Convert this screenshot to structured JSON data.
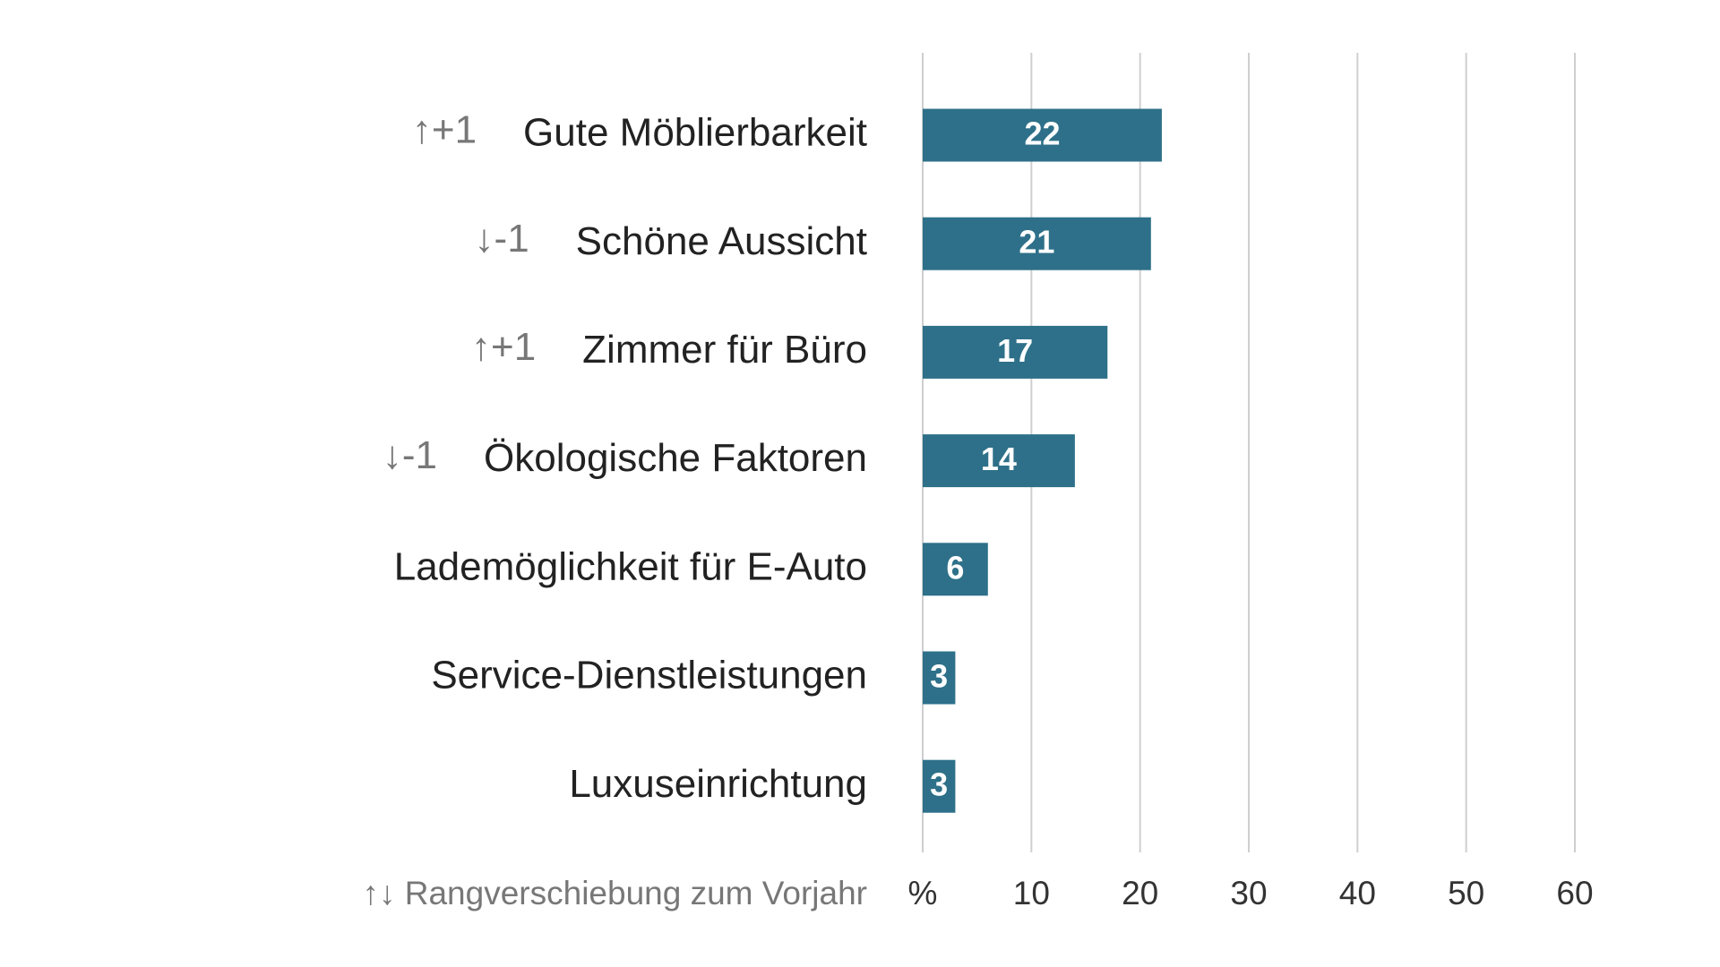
{
  "chart_data": {
    "type": "bar",
    "orientation": "horizontal",
    "categories": [
      "Gute Möblierbarkeit",
      "Schöne Aussicht",
      "Zimmer für Büro",
      "Ökologische Faktoren",
      "Lademöglichkeit für E-Auto",
      "Service-Dienstleistungen",
      "Luxuseinrichtung"
    ],
    "values": [
      22,
      21,
      17,
      14,
      6,
      3,
      3
    ],
    "rank_changes": [
      "↑+1",
      "↓-1",
      "↑+1",
      "↓-1",
      null,
      null,
      null
    ],
    "note": "↑↓ Rangverschiebung zum Vorjahr",
    "color": "#2e7089",
    "xlim": [
      0,
      60
    ],
    "xticks": [
      {
        "value": 0,
        "label": "%"
      },
      10,
      20,
      30,
      40,
      50,
      60
    ],
    "grid": true
  }
}
